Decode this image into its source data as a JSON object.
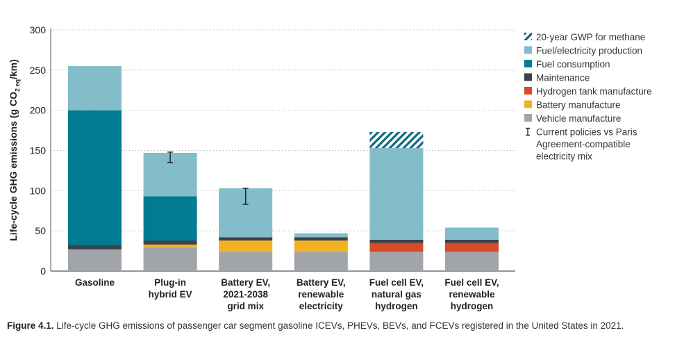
{
  "chart_data": {
    "type": "bar",
    "stacked": true,
    "ylabel_parts": [
      "Life-cycle GHG emissions (g CO",
      "2 eq",
      "/km)"
    ],
    "ylim": [
      0,
      300
    ],
    "yticks": [
      0,
      50,
      100,
      150,
      200,
      250,
      300
    ],
    "grid": "horizontal dotted",
    "legend_position": "right",
    "categories": [
      [
        "Gasoline"
      ],
      [
        "Plug-in",
        "hybrid EV"
      ],
      [
        "Battery EV,",
        "2021-2038",
        "grid mix"
      ],
      [
        "Battery EV,",
        "renewable",
        "electricity"
      ],
      [
        "Fuel cell EV,",
        "natural gas",
        "hydrogen"
      ],
      [
        "Fuel cell EV,",
        "renewable",
        "hydrogen"
      ]
    ],
    "series": [
      {
        "name": "Vehicle manufacture",
        "color": "#a1a5a9",
        "values": [
          27,
          29,
          24,
          24,
          24,
          24
        ]
      },
      {
        "name": "Battery manufacture",
        "color": "#f2b124",
        "values": [
          0,
          4,
          14,
          14,
          0,
          0
        ]
      },
      {
        "name": "Hydrogen tank manufacture",
        "color": "#d64a27",
        "values": [
          0,
          0,
          0,
          0,
          11,
          11
        ]
      },
      {
        "name": "Maintenance",
        "color": "#39434b",
        "values": [
          5,
          5,
          4,
          4,
          4,
          4
        ]
      },
      {
        "name": "Fuel consumption",
        "color": "#007b91",
        "values": [
          168,
          55,
          0,
          0,
          0,
          0
        ]
      },
      {
        "name": "Fuel/electricity production",
        "color": "#82bdc9",
        "values": [
          55,
          54,
          61,
          5,
          114,
          15
        ]
      },
      {
        "name": "20-year GWP for methane",
        "color": "#0b6a7c",
        "pattern": "hatch",
        "values": [
          0,
          0,
          0,
          0,
          20,
          0
        ]
      }
    ],
    "error_bars": {
      "name_lines": [
        "Current policies vs Paris",
        "Agreement-compatible",
        "electricity mix"
      ],
      "ranges": [
        null,
        [
          135,
          148
        ],
        [
          83,
          103
        ],
        null,
        null,
        null
      ]
    },
    "legend_order": [
      "20-year GWP for methane",
      "Fuel/electricity production",
      "Fuel consumption",
      "Maintenance",
      "Hydrogen tank manufacture",
      "Battery manufacture",
      "Vehicle manufacture"
    ]
  },
  "caption": {
    "label": "Figure 4.1.",
    "text": " Life-cycle GHG emissions of passenger car segment gasoline ICEVs, PHEVs, BEVs, and FCEVs registered in the United States in 2021."
  }
}
